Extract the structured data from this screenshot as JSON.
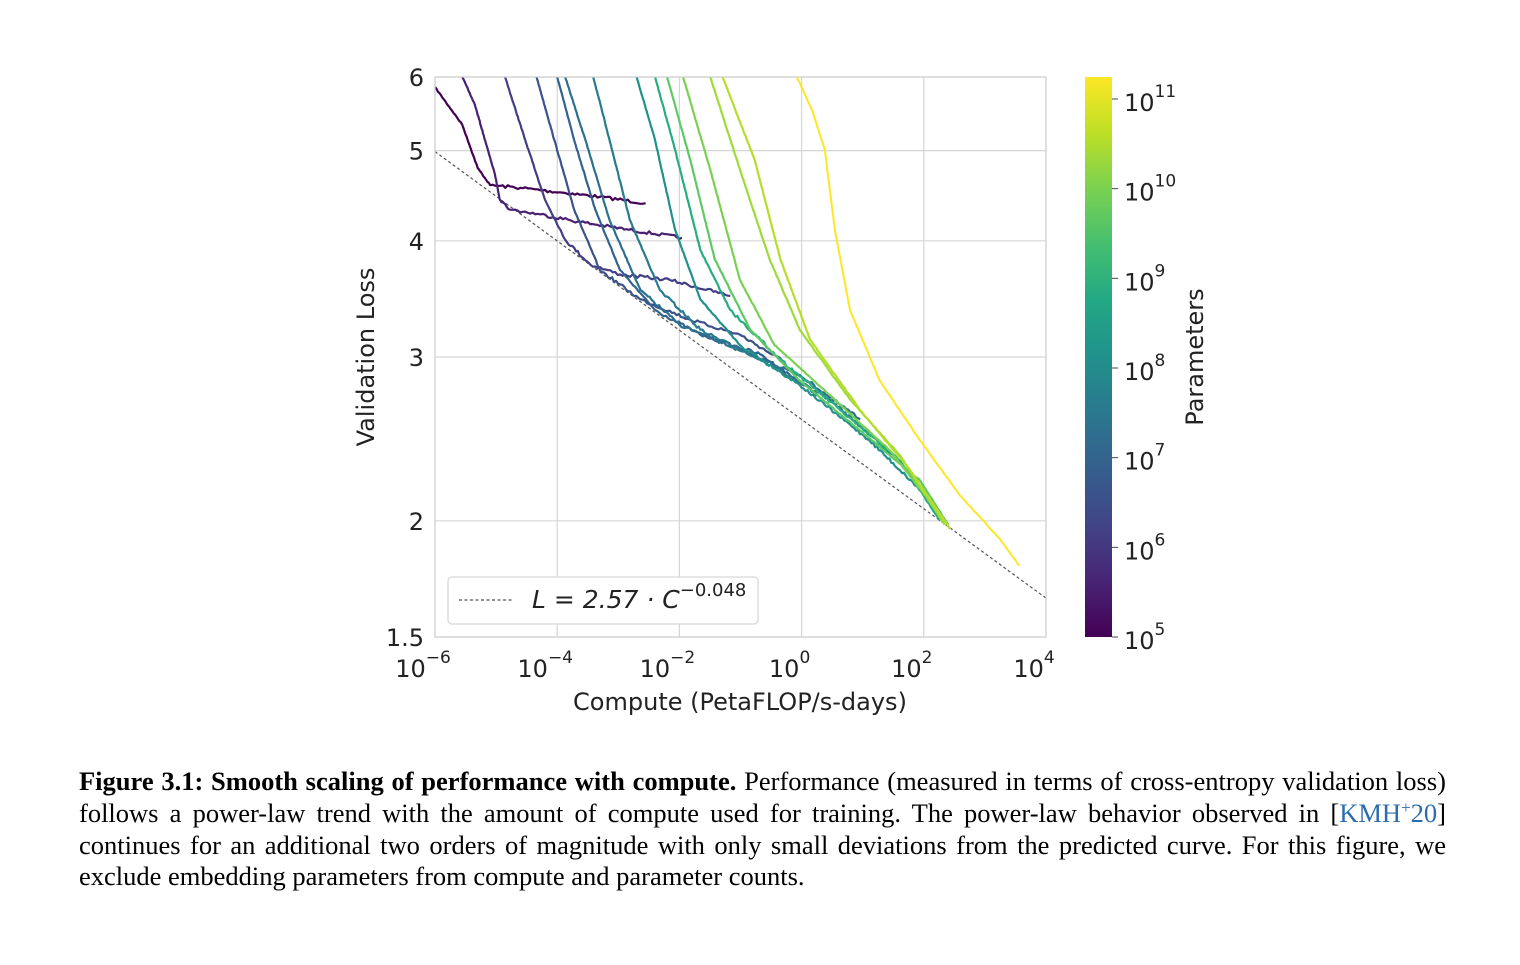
{
  "chart_data": {
    "type": "line",
    "xlabel": "Compute (PetaFLOP/s-days)",
    "ylabel": "Validation Loss",
    "x_scale": "log",
    "y_scale": "log",
    "xlim": [
      1e-06,
      10000.0
    ],
    "ylim": [
      1.5,
      6
    ],
    "x_ticks": [
      {
        "base": "10",
        "exp": "−6",
        "value": 1e-06
      },
      {
        "base": "10",
        "exp": "−4",
        "value": 0.0001
      },
      {
        "base": "10",
        "exp": "−2",
        "value": 0.01
      },
      {
        "base": "10",
        "exp": "0",
        "value": 1
      },
      {
        "base": "10",
        "exp": "2",
        "value": 100.0
      },
      {
        "base": "10",
        "exp": "4",
        "value": 10000.0
      }
    ],
    "y_ticks": [
      {
        "label": "1.5",
        "value": 1.5
      },
      {
        "label": "2",
        "value": 2
      },
      {
        "label": "3",
        "value": 3
      },
      {
        "label": "4",
        "value": 4
      },
      {
        "label": "5",
        "value": 5
      },
      {
        "label": "6",
        "value": 6
      }
    ],
    "grid": true,
    "fit_line": {
      "legend_prefix": "L = 2.57 · C",
      "legend_exp": "−0.048",
      "coef": 2.57,
      "exponent": -0.048,
      "style": "dashed",
      "color": "#555555"
    },
    "legend_position": "bottom-left",
    "colorbar": {
      "label": "Parameters",
      "colormap": "viridis",
      "ticks": [
        {
          "base": "10",
          "exp": "5"
        },
        {
          "base": "10",
          "exp": "6"
        },
        {
          "base": "10",
          "exp": "7"
        },
        {
          "base": "10",
          "exp": "8"
        },
        {
          "base": "10",
          "exp": "9"
        },
        {
          "base": "10",
          "exp": "10"
        },
        {
          "base": "10",
          "exp": "11"
        }
      ]
    },
    "series": [
      {
        "color": "#440154",
        "points": [
          [
            1e-06,
            5.85
          ],
          [
            2.8e-06,
            5.33
          ],
          [
            5e-06,
            4.79
          ],
          [
            8e-06,
            4.59
          ],
          [
            2.5e-05,
            4.56
          ],
          [
            0.00011,
            4.51
          ],
          [
            0.0005,
            4.46
          ],
          [
            0.0028,
            4.39
          ]
        ]
      },
      {
        "color": "#482173",
        "points": [
          [
            2.8e-06,
            6.0
          ],
          [
            4.5e-06,
            5.6
          ],
          [
            6.6e-06,
            5.13
          ],
          [
            9.6e-06,
            4.71
          ],
          [
            1.15e-05,
            4.43
          ],
          [
            1.7e-05,
            4.32
          ],
          [
            5.3e-05,
            4.27
          ],
          [
            0.00024,
            4.19
          ],
          [
            0.0015,
            4.11
          ],
          [
            0.011,
            4.03
          ]
        ]
      },
      {
        "color": "#433e85",
        "points": [
          [
            1.4e-05,
            6.0
          ],
          [
            3e-05,
            5.13
          ],
          [
            6.3e-05,
            4.43
          ],
          [
            0.000135,
            4.01
          ],
          [
            0.00035,
            3.77
          ],
          [
            0.00107,
            3.68
          ],
          [
            0.007,
            3.63
          ],
          [
            0.068,
            3.49
          ]
        ]
      },
      {
        "color": "#3b528b",
        "points": [
          [
            4.6e-05,
            6.0
          ],
          [
            9e-05,
            5.13
          ],
          [
            0.00019,
            4.32
          ],
          [
            0.0005,
            3.72
          ],
          [
            0.0023,
            3.46
          ],
          [
            0.015,
            3.29
          ],
          [
            0.098,
            3.17
          ],
          [
            0.54,
            2.96
          ]
        ]
      },
      {
        "color": "#33638d",
        "points": [
          [
            0.0001,
            6.0
          ],
          [
            0.00019,
            5.13
          ],
          [
            0.00042,
            4.32
          ],
          [
            0.00107,
            3.72
          ],
          [
            0.004,
            3.37
          ],
          [
            0.022,
            3.17
          ],
          [
            0.21,
            3.02
          ],
          [
            1.85,
            2.73
          ]
        ]
      },
      {
        "color": "#2d708e",
        "points": [
          [
            0.000135,
            6.0
          ],
          [
            0.00029,
            5.13
          ],
          [
            0.00072,
            4.21
          ],
          [
            0.0023,
            3.54
          ],
          [
            0.01,
            3.25
          ],
          [
            0.098,
            3.05
          ],
          [
            0.93,
            2.87
          ],
          [
            9.1,
            2.57
          ]
        ]
      },
      {
        "color": "#287c8e",
        "points": [
          [
            0.00039,
            6.0
          ],
          [
            0.00072,
            5.13
          ],
          [
            0.00155,
            4.21
          ],
          [
            0.0048,
            3.54
          ],
          [
            0.022,
            3.21
          ],
          [
            0.21,
            2.98
          ],
          [
            2.9,
            2.7
          ],
          [
            41,
            2.32
          ]
        ]
      },
      {
        "color": "#21918c",
        "points": [
          [
            0.002,
            6.0
          ],
          [
            0.004,
            5.13
          ],
          [
            0.0085,
            4.11
          ],
          [
            0.022,
            3.46
          ],
          [
            0.098,
            3.09
          ],
          [
            0.93,
            2.8
          ],
          [
            13,
            2.44
          ],
          [
            87,
            2.16
          ]
        ]
      },
      {
        "color": "#27ad81",
        "points": [
          [
            0.004,
            6.0
          ],
          [
            0.0085,
            5.01
          ],
          [
            0.022,
            3.91
          ],
          [
            0.068,
            3.37
          ],
          [
            0.45,
            2.98
          ],
          [
            4.3,
            2.63
          ],
          [
            41,
            2.32
          ],
          [
            186,
            2.0
          ]
        ]
      },
      {
        "color": "#5ec962",
        "points": [
          [
            0.0063,
            6.0
          ],
          [
            0.015,
            4.89
          ],
          [
            0.038,
            3.82
          ],
          [
            0.144,
            3.21
          ],
          [
            0.93,
            2.83
          ],
          [
            9.1,
            2.5
          ],
          [
            87,
            2.21
          ],
          [
            250,
            1.98
          ]
        ]
      },
      {
        "color": "#7ad151",
        "points": [
          [
            0.0115,
            6.0
          ],
          [
            0.032,
            4.77
          ],
          [
            0.098,
            3.63
          ],
          [
            0.36,
            3.09
          ],
          [
            2.9,
            2.73
          ],
          [
            28,
            2.38
          ],
          [
            250,
            1.98
          ]
        ]
      },
      {
        "color": "#a0da39",
        "points": [
          [
            0.032,
            6.0
          ],
          [
            0.098,
            4.77
          ],
          [
            0.3,
            3.82
          ],
          [
            0.93,
            3.21
          ],
          [
            6.2,
            2.7
          ],
          [
            41,
            2.35
          ],
          [
            220,
            1.98
          ]
        ]
      },
      {
        "color": "#b5de2b",
        "points": [
          [
            0.051,
            6.0
          ],
          [
            0.17,
            4.89
          ],
          [
            0.45,
            3.82
          ],
          [
            1.38,
            3.13
          ],
          [
            9.1,
            2.63
          ],
          [
            59,
            2.27
          ],
          [
            270,
            1.96
          ]
        ]
      },
      {
        "color": "#fde725",
        "points": [
          [
            0.84,
            6.0
          ],
          [
            1.48,
            5.53
          ],
          [
            2.4,
            5.01
          ],
          [
            3.5,
            4.11
          ],
          [
            6.2,
            3.37
          ],
          [
            19,
            2.83
          ],
          [
            87,
            2.44
          ],
          [
            390,
            2.13
          ],
          [
            1780,
            1.91
          ],
          [
            3650,
            1.79
          ]
        ]
      }
    ]
  },
  "caption": {
    "title": "Figure 3.1: Smooth scaling of performance with compute.",
    "text_before_cite": " Performance (measured in terms of cross-entropy validation loss) follows a power-law trend with the amount of compute used for training. The power-law behavior observed in [",
    "cite_main": "KMH",
    "cite_sup": "+",
    "cite_year": "20",
    "text_after_cite": "] continues for an additional two orders of magnitude with only small deviations from the predicted curve. For this figure, we exclude embedding parameters from compute and parameter counts.",
    "cite_color": "#2b6cb0"
  }
}
